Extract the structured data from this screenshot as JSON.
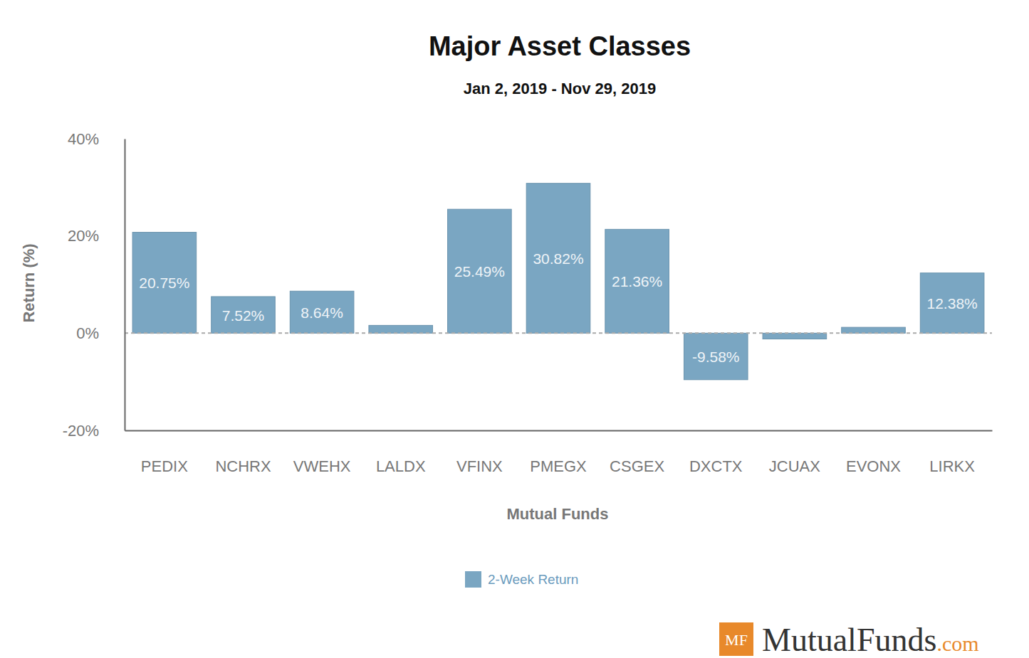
{
  "chart_data": {
    "type": "bar",
    "title": "Major Asset Classes",
    "subtitle": "Jan 2, 2019 - Nov 29, 2019",
    "x_label": "Mutual Funds",
    "y_label": "Return (%)",
    "categories": [
      "PEDIX",
      "NCHRX",
      "VWEHX",
      "LALDX",
      "VFINX",
      "PMEGX",
      "CSGEX",
      "DXCTX",
      "JCUAX",
      "EVONX",
      "LIRKX"
    ],
    "series": [
      {
        "name": "2-Week Return",
        "color": "#7aa6c2",
        "values": [
          20.75,
          7.52,
          8.64,
          1.6,
          25.49,
          30.82,
          21.36,
          -9.58,
          -1.2,
          1.2,
          12.38
        ],
        "value_labels": [
          "20.75%",
          "7.52%",
          "8.64%",
          null,
          "25.49%",
          "30.82%",
          "21.36%",
          "-9.58%",
          null,
          null,
          "12.38%"
        ]
      }
    ],
    "ylim": [
      -20,
      40
    ],
    "yticks": [
      {
        "value": -20,
        "label": "-20%"
      },
      {
        "value": 0,
        "label": "0%"
      },
      {
        "value": 20,
        "label": "20%"
      },
      {
        "value": 40,
        "label": "40%"
      }
    ],
    "grid": false,
    "data_labels": true,
    "legend": "bottom",
    "annotations": [
      "MF",
      "MutualFunds",
      ".com"
    ]
  }
}
